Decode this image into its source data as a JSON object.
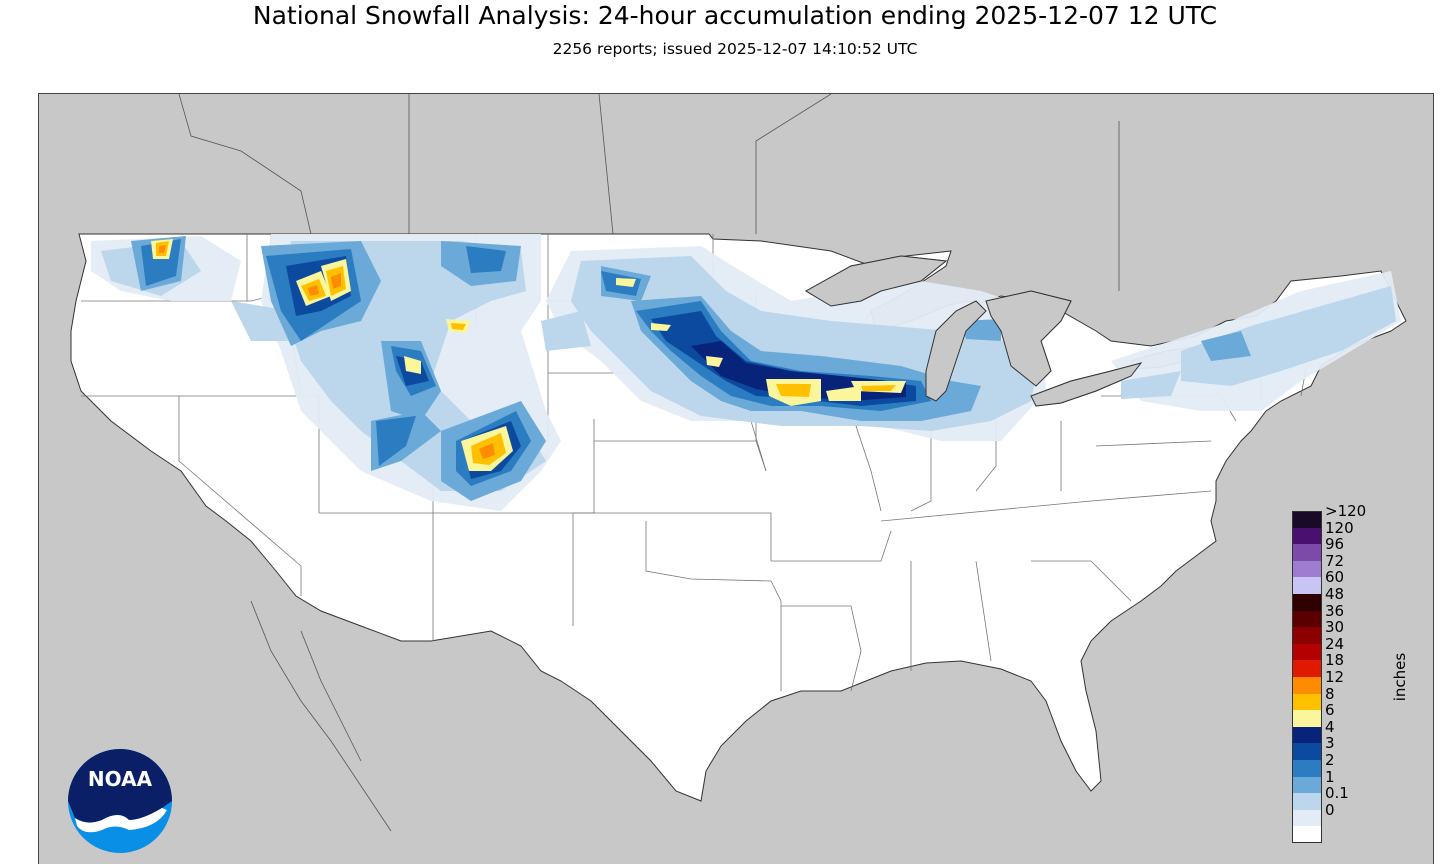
{
  "title": "National Snowfall Analysis: 24-hour accumulation ending 2025-12-07 12 UTC",
  "subtitle": "2256 reports; issued 2025-12-07 14:10:52 UTC",
  "legend": {
    "units": "inches",
    "levels": [
      {
        "label": ">120",
        "color": "#1a0a2a"
      },
      {
        "label": "120",
        "color": "#4a1070"
      },
      {
        "label": "96",
        "color": "#7c4aa8"
      },
      {
        "label": "72",
        "color": "#a07cd0"
      },
      {
        "label": "60",
        "color": "#c8c4f4"
      },
      {
        "label": "48",
        "color": "#2e0000"
      },
      {
        "label": "36",
        "color": "#5a0000"
      },
      {
        "label": "30",
        "color": "#8c0000"
      },
      {
        "label": "24",
        "color": "#b40000"
      },
      {
        "label": "18",
        "color": "#e01a00"
      },
      {
        "label": "12",
        "color": "#ff8c00"
      },
      {
        "label": "8",
        "color": "#ffc000"
      },
      {
        "label": "6",
        "color": "#fbf59b"
      },
      {
        "label": "4",
        "color": "#08237a"
      },
      {
        "label": "3",
        "color": "#0b4a9e"
      },
      {
        "label": "2",
        "color": "#2b7cc0"
      },
      {
        "label": "1",
        "color": "#6aa9d8"
      },
      {
        "label": "0.1",
        "color": "#bcd6ec"
      },
      {
        "label": "0",
        "color": "#e3ecf6"
      }
    ],
    "bottom_color": "#ffffff"
  },
  "logo": {
    "text": "NOAA"
  },
  "colors": {
    "land": "#ffffff",
    "outside": "#c8c8c8",
    "water": "#c8c8c8"
  }
}
